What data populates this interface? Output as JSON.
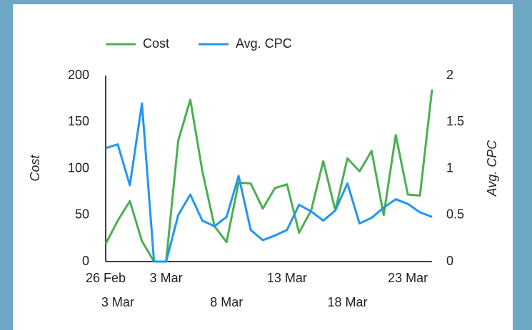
{
  "chart_data": {
    "type": "line",
    "categories": [
      "26 Feb",
      "3 Mar",
      null,
      null,
      null,
      "3 Mar",
      null,
      null,
      null,
      null,
      "8 Mar",
      null,
      null,
      null,
      null,
      "13 Mar",
      null,
      null,
      null,
      null,
      "18 Mar",
      null,
      null,
      null,
      null,
      "23 Mar",
      null,
      null
    ],
    "y_label": "Cost",
    "y2_label": "Avg. CPC",
    "series": [
      {
        "name": "Cost",
        "color": "#4caf50",
        "values": [
          19,
          44,
          65,
          22,
          0,
          0,
          130,
          174,
          97,
          38,
          21,
          85,
          84,
          57,
          79,
          83,
          31,
          55,
          108,
          55,
          111,
          97,
          119,
          50,
          136,
          72,
          71,
          185
        ]
      },
      {
        "name": "Avg. CPC",
        "color": "#2196f3",
        "axis": "y2",
        "values": [
          1.22,
          1.26,
          0.82,
          1.7,
          0,
          0,
          0.5,
          0.72,
          0.44,
          0.38,
          0.48,
          0.92,
          0.34,
          0.23,
          0.28,
          0.34,
          0.61,
          0.54,
          0.44,
          0.55,
          0.84,
          0.41,
          0.47,
          0.58,
          0.67,
          0.62,
          0.53,
          0.48
        ]
      }
    ],
    "ylim": [
      0,
      200
    ],
    "yticks": [
      0,
      50,
      100,
      150,
      200
    ],
    "y2lim": [
      0,
      2
    ],
    "y2ticks": [
      0,
      0.5,
      1,
      1.5,
      2
    ],
    "legend": "top"
  }
}
